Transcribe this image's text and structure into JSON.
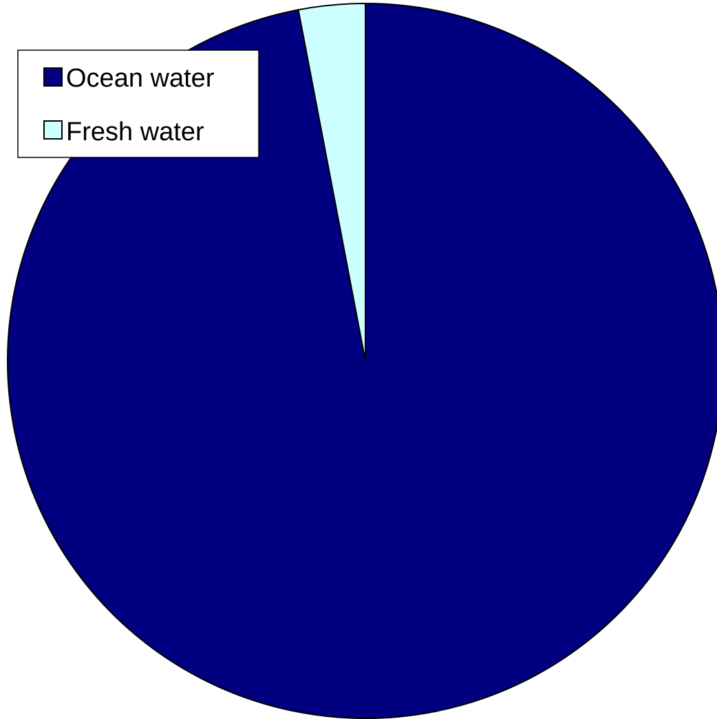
{
  "chart_data": {
    "type": "pie",
    "title": "",
    "categories": [
      "Ocean water",
      "Fresh water"
    ],
    "values": [
      97,
      3
    ],
    "colors": [
      "#000080",
      "#CCFFFF"
    ],
    "legend": {
      "placement": "top-left",
      "entries": [
        "Ocean water",
        "Fresh water"
      ]
    }
  }
}
